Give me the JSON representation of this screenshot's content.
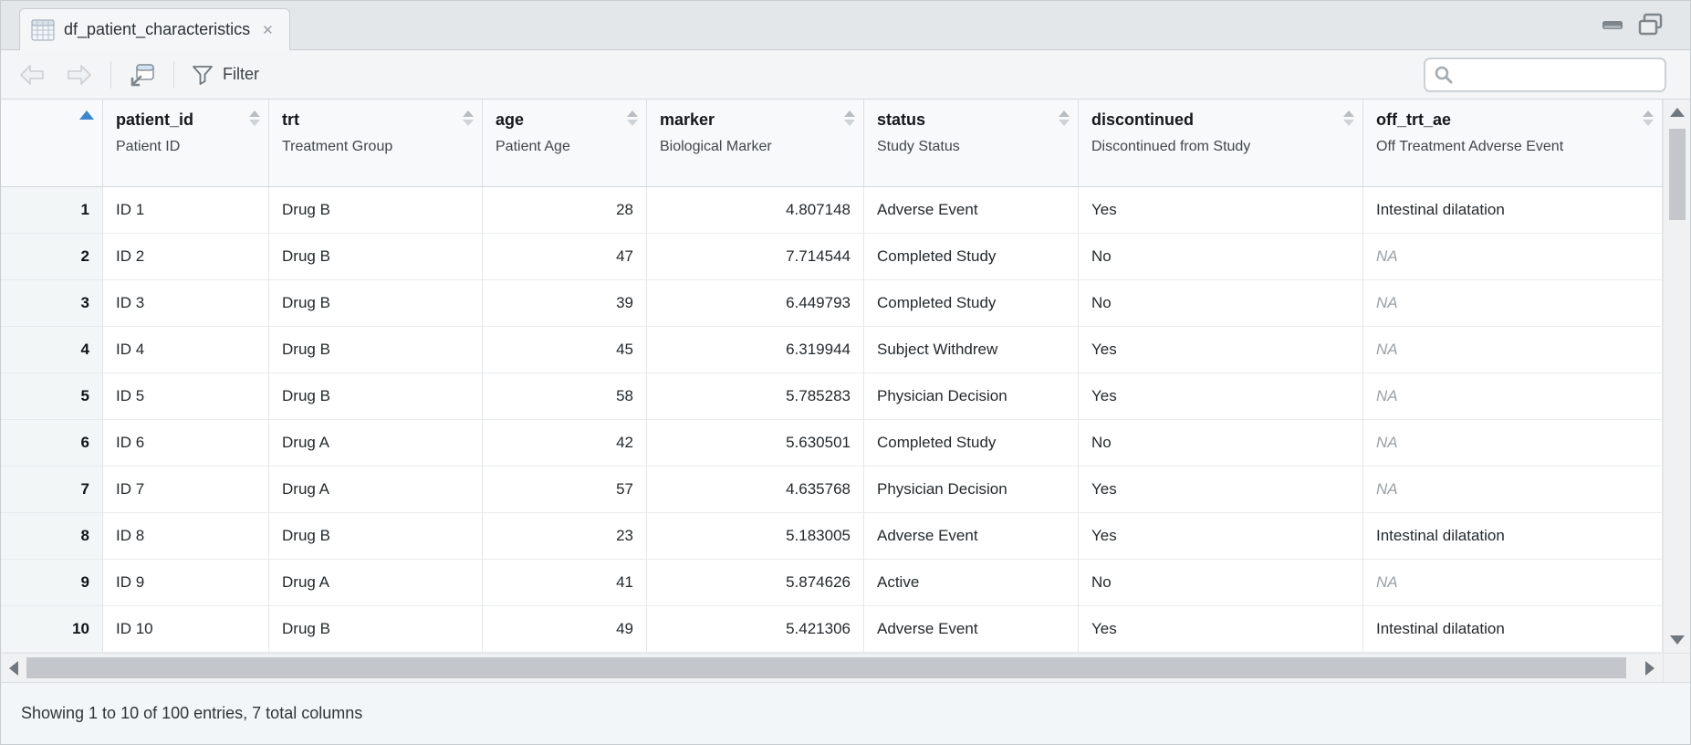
{
  "tab": {
    "title": "df_patient_characteristics",
    "close_glyph": "✕"
  },
  "window_controls": {
    "minimize": "minimize",
    "maximize": "maximize"
  },
  "toolbar": {
    "filter_label": "Filter",
    "search_placeholder": "",
    "search_value": ""
  },
  "colors": {
    "sort_ascending_accent": "#3a86d1",
    "na_text": "#9ba1a7",
    "header_bg": "#f7f9fa",
    "rownum_bg": "#f3f6f7"
  },
  "table": {
    "na_text": "NA",
    "columns": [
      {
        "key": "num",
        "label": "",
        "subtitle": "",
        "align": "right",
        "sort": "asc"
      },
      {
        "key": "patient_id",
        "label": "patient_id",
        "subtitle": "Patient ID",
        "align": "left",
        "sort": "both"
      },
      {
        "key": "trt",
        "label": "trt",
        "subtitle": "Treatment Group",
        "align": "left",
        "sort": "both"
      },
      {
        "key": "age",
        "label": "age",
        "subtitle": "Patient Age",
        "align": "right",
        "sort": "both"
      },
      {
        "key": "marker",
        "label": "marker",
        "subtitle": "Biological Marker",
        "align": "right",
        "sort": "both"
      },
      {
        "key": "status",
        "label": "status",
        "subtitle": "Study Status",
        "align": "left",
        "sort": "both"
      },
      {
        "key": "discontinued",
        "label": "discontinued",
        "subtitle": "Discontinued from Study",
        "align": "left",
        "sort": "both"
      },
      {
        "key": "off_trt_ae",
        "label": "off_trt_ae",
        "subtitle": "Off Treatment Adverse Event",
        "align": "left",
        "sort": "both"
      }
    ],
    "rows": [
      {
        "num": "1",
        "patient_id": "ID 1",
        "trt": "Drug B",
        "age": "28",
        "marker": "4.807148",
        "status": "Adverse Event",
        "discontinued": "Yes",
        "off_trt_ae": "Intestinal dilatation"
      },
      {
        "num": "2",
        "patient_id": "ID 2",
        "trt": "Drug B",
        "age": "47",
        "marker": "7.714544",
        "status": "Completed Study",
        "discontinued": "No",
        "off_trt_ae": "NA"
      },
      {
        "num": "3",
        "patient_id": "ID 3",
        "trt": "Drug B",
        "age": "39",
        "marker": "6.449793",
        "status": "Completed Study",
        "discontinued": "No",
        "off_trt_ae": "NA"
      },
      {
        "num": "4",
        "patient_id": "ID 4",
        "trt": "Drug B",
        "age": "45",
        "marker": "6.319944",
        "status": "Subject Withdrew",
        "discontinued": "Yes",
        "off_trt_ae": "NA"
      },
      {
        "num": "5",
        "patient_id": "ID 5",
        "trt": "Drug B",
        "age": "58",
        "marker": "5.785283",
        "status": "Physician Decision",
        "discontinued": "Yes",
        "off_trt_ae": "NA"
      },
      {
        "num": "6",
        "patient_id": "ID 6",
        "trt": "Drug A",
        "age": "42",
        "marker": "5.630501",
        "status": "Completed Study",
        "discontinued": "No",
        "off_trt_ae": "NA"
      },
      {
        "num": "7",
        "patient_id": "ID 7",
        "trt": "Drug A",
        "age": "57",
        "marker": "4.635768",
        "status": "Physician Decision",
        "discontinued": "Yes",
        "off_trt_ae": "NA"
      },
      {
        "num": "8",
        "patient_id": "ID 8",
        "trt": "Drug B",
        "age": "23",
        "marker": "5.183005",
        "status": "Adverse Event",
        "discontinued": "Yes",
        "off_trt_ae": "Intestinal dilatation"
      },
      {
        "num": "9",
        "patient_id": "ID 9",
        "trt": "Drug A",
        "age": "41",
        "marker": "5.874626",
        "status": "Active",
        "discontinued": "No",
        "off_trt_ae": "NA"
      },
      {
        "num": "10",
        "patient_id": "ID 10",
        "trt": "Drug B",
        "age": "49",
        "marker": "5.421306",
        "status": "Adverse Event",
        "discontinued": "Yes",
        "off_trt_ae": "Intestinal dilatation"
      }
    ]
  },
  "statusbar": {
    "text": "Showing 1 to 10 of 100 entries, 7 total columns"
  }
}
